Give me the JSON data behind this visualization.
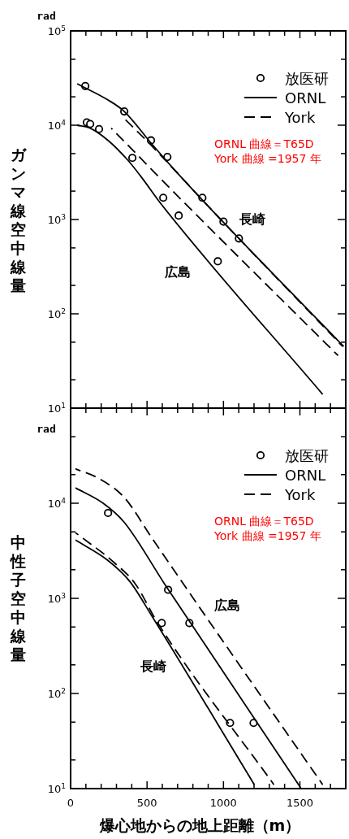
{
  "chart_data": [
    {
      "type": "line",
      "ylabel": "ガンマ線空中線量",
      "annotations": [
        "rad",
        "ORNL 曲線＝T65D",
        "York 曲線 =1957 年",
        "広島",
        "長崎"
      ],
      "xlim": [
        0,
        1800
      ],
      "xticks": [
        0,
        {
          "value": 100,
          "label": null
        },
        {
          "value": 200,
          "label": null
        },
        {
          "value": 300,
          "label": null
        },
        {
          "value": 400,
          "label": null
        },
        500,
        {
          "value": 600,
          "label": null
        },
        {
          "value": 700,
          "label": null
        },
        {
          "value": 800,
          "label": null
        },
        {
          "value": 900,
          "label": null
        },
        1000,
        {
          "value": 1100,
          "label": null
        },
        {
          "value": 1200,
          "label": null
        },
        {
          "value": 1300,
          "label": null
        },
        {
          "value": 1400,
          "label": null
        },
        1500,
        {
          "value": 1600,
          "label": null
        },
        {
          "value": 1700,
          "label": null
        }
      ],
      "ylim": [
        10,
        100000
      ],
      "log": true,
      "yticks": [
        {
          "value": 10,
          "label": "10$^{1}$"
        },
        {
          "value": 20,
          "label": null
        },
        {
          "value": 50,
          "label": null
        },
        {
          "value": 100,
          "label": "10$^{2}$"
        },
        {
          "value": 200,
          "label": null
        },
        {
          "value": 500,
          "label": null
        },
        {
          "value": 1000,
          "label": "10$^{3}$"
        },
        {
          "value": 2000,
          "label": null
        },
        {
          "value": 5000,
          "label": null
        },
        {
          "value": 10000,
          "label": "10$^{4}$"
        },
        {
          "value": 20000,
          "label": null
        },
        {
          "value": 50000,
          "label": null
        },
        {
          "value": 100000,
          "label": "10$^{5}$"
        }
      ],
      "tick_labels": "y",
      "legend": "top right",
      "grid": false,
      "series": [
        {
          "name": "放医研",
          "type": "scatter",
          "marker": "circle",
          "color": "#000000",
          "x": [
            96,
            106,
            128,
            186,
            351,
            404,
            526,
            633,
            606,
            862,
            707,
            1000,
            1101,
            963
          ],
          "values": [
            26000,
            10700,
            10300,
            9100,
            14000,
            4500,
            6900,
            4600,
            1700,
            1700,
            1100,
            950,
            630,
            360
          ]
        },
        {
          "name": "ORNL",
          "line_style": "solid",
          "color": "#000000",
          "x": [
            43,
            122,
            245,
            372,
            457,
            601,
            1649
          ],
          "values": [
            10000,
            9400,
            6900,
            4300,
            2900,
            1400,
            14
          ]
        },
        {
          "line_style": "solid",
          "color": "#000000",
          "x": [
            43,
            245,
            351,
            532,
            670,
            936,
            1787
          ],
          "values": [
            27500,
            18500,
            14000,
            6300,
            3500,
            1200,
            45
          ]
        },
        {
          "name": "York",
          "line_style": "dashed",
          "color": "#000000",
          "x": [
            266,
            745,
            1750
          ],
          "values": [
            9300,
            1500,
            36
          ]
        },
        {
          "line_style": "dashed",
          "color": "#000000",
          "x": [
            346,
            532,
            936,
            1780
          ],
          "values": [
            12000,
            6000,
            1200,
            45
          ]
        }
      ]
    },
    {
      "type": "line",
      "ylabel": "中性子空中線量",
      "xlabel": "爆心地からの地上距離（m）",
      "annotations": [
        "rad",
        "ORNL 曲線＝T65D",
        "York 曲線 =1957 年",
        "広島",
        "長崎"
      ],
      "xlim": [
        0,
        1800
      ],
      "xticks": [
        0,
        {
          "value": 100,
          "label": null
        },
        {
          "value": 200,
          "label": null
        },
        {
          "value": 300,
          "label": null
        },
        {
          "value": 400,
          "label": null
        },
        500,
        {
          "value": 600,
          "label": null
        },
        {
          "value": 700,
          "label": null
        },
        {
          "value": 800,
          "label": null
        },
        {
          "value": 900,
          "label": null
        },
        1000,
        {
          "value": 1100,
          "label": null
        },
        {
          "value": 1200,
          "label": null
        },
        {
          "value": 1300,
          "label": null
        },
        {
          "value": 1400,
          "label": null
        },
        1500,
        {
          "value": 1600,
          "label": null
        },
        {
          "value": 1700,
          "label": null
        }
      ],
      "ylim": [
        10,
        100000
      ],
      "log": true,
      "yticks": [
        {
          "value": 10,
          "label": "10$^{1}$"
        },
        {
          "value": 20,
          "label": null
        },
        {
          "value": 50,
          "label": null
        },
        {
          "value": 100,
          "label": "10$^{2}$"
        },
        {
          "value": 200,
          "label": null
        },
        {
          "value": 500,
          "label": null
        },
        {
          "value": 1000,
          "label": "10$^{3}$"
        },
        {
          "value": 2000,
          "label": null
        },
        {
          "value": 5000,
          "label": null
        },
        {
          "value": 10000,
          "label": "10$^{4}$"
        },
        {
          "value": 20000,
          "label": null
        },
        {
          "value": 50000,
          "label": null
        }
      ],
      "legend": "top right",
      "grid": false,
      "series": [
        {
          "name": "放医研",
          "type": "scatter",
          "marker": "circle",
          "color": "#000000",
          "x": [
            245,
            638,
            596,
            777,
            1043,
            1197
          ],
          "values": [
            7900,
            1230,
            550,
            550,
            49,
            49
          ]
        },
        {
          "name": "ORNL",
          "line_style": "solid",
          "color": "#000000",
          "x": [
            32,
            213,
            351,
            617,
            1505
          ],
          "values": [
            14500,
            10000,
            6300,
            1400,
            10.2
          ]
        },
        {
          "line_style": "solid",
          "color": "#000000",
          "x": [
            32,
            245,
            388,
            532,
            1202
          ],
          "values": [
            4100,
            2500,
            1500,
            650,
            11
          ]
        },
        {
          "name": "York",
          "line_style": "dashed",
          "color": "#000000",
          "x": [
            32,
            191,
            351,
            532,
            883,
            1649
          ],
          "values": [
            23000,
            18000,
            11500,
            4300,
            650,
            11
          ]
        },
        {
          "line_style": "dashed",
          "color": "#000000",
          "x": [
            32,
            282,
            426,
            564,
            1330
          ],
          "values": [
            4900,
            2400,
            1400,
            570,
            11
          ]
        }
      ]
    }
  ]
}
